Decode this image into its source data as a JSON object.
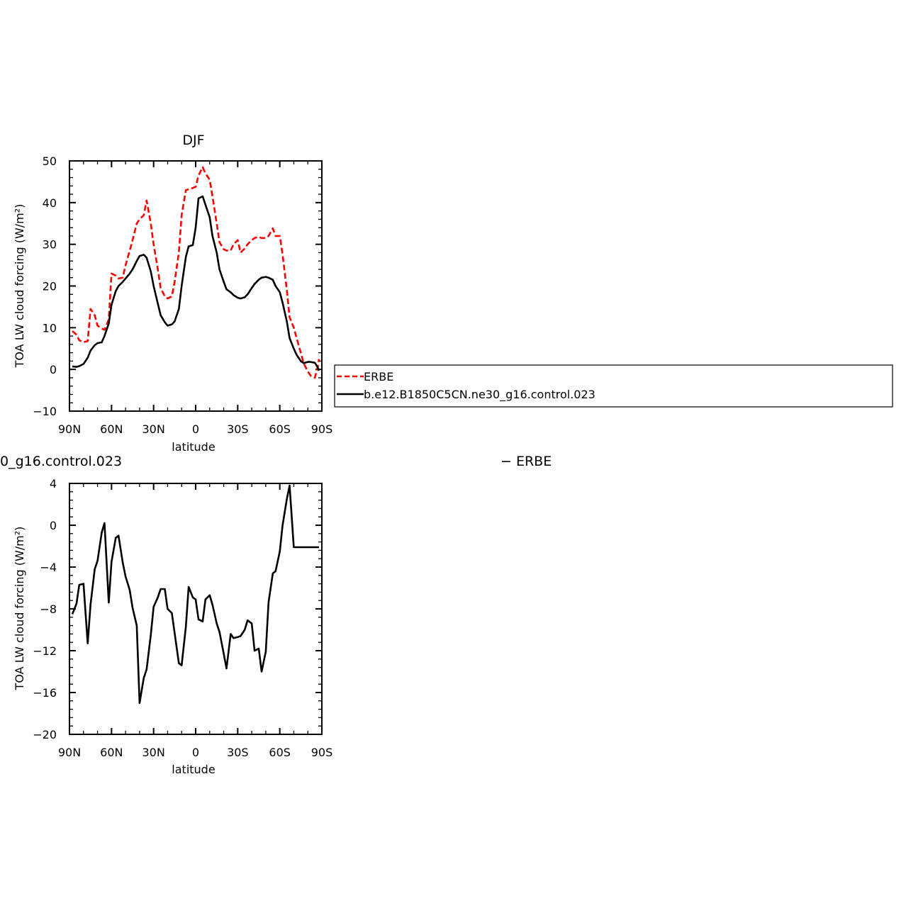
{
  "chart_data": [
    {
      "type": "line",
      "title": "DJF",
      "xlabel": "latitude",
      "ylabel": "TOA LW cloud forcing (W/m²)",
      "xlim": [
        90,
        -90
      ],
      "ylim": [
        -10,
        50
      ],
      "xticks": [
        90,
        60,
        30,
        0,
        -30,
        -60,
        -90
      ],
      "xtick_labels": [
        "90N",
        "60N",
        "30N",
        "0",
        "30S",
        "60S",
        "90S"
      ],
      "yticks": [
        -10,
        0,
        10,
        20,
        30,
        40,
        50
      ],
      "ytick_labels": [
        "−10",
        "0",
        "10",
        "20",
        "30",
        "40",
        "50"
      ],
      "legend_position": "right",
      "series": [
        {
          "name": "ERBE",
          "color": "#ff0000",
          "dash": true,
          "x": [
            88,
            85,
            83,
            80,
            77,
            75,
            72,
            70,
            67,
            65,
            62,
            60,
            57,
            55,
            52,
            50,
            47,
            45,
            42,
            40,
            37,
            35,
            32,
            30,
            27,
            25,
            22,
            20,
            17,
            15,
            12,
            10,
            7,
            5,
            2,
            0,
            -2,
            -5,
            -7,
            -10,
            -12,
            -15,
            -17,
            -20,
            -22,
            -25,
            -27,
            -30,
            -32,
            -35,
            -37,
            -40,
            -42,
            -45,
            -47,
            -50,
            -52,
            -55,
            -57,
            -60,
            -62,
            -65,
            -67,
            -70,
            -72,
            -75,
            -77,
            -80,
            -82,
            -85,
            -87,
            -88
          ],
          "y": [
            9.2,
            8.3,
            7.0,
            6.5,
            6.8,
            14.5,
            13.0,
            10.5,
            9.8,
            9.5,
            12.0,
            23.0,
            22.5,
            21.8,
            22.0,
            25.0,
            28.5,
            31.0,
            35.0,
            36.0,
            37.0,
            40.5,
            35.0,
            30.0,
            24.0,
            19.5,
            17.5,
            17.0,
            17.5,
            21.0,
            28.0,
            37.0,
            43.0,
            43.2,
            43.5,
            43.8,
            46.5,
            48.5,
            47.0,
            45.5,
            41.5,
            35.0,
            30.5,
            28.8,
            28.5,
            28.5,
            30.0,
            31.0,
            28.0,
            29.0,
            30.0,
            31.0,
            31.5,
            31.8,
            31.5,
            31.5,
            32.0,
            33.8,
            32.0,
            32.0,
            27.5,
            19.0,
            12.5,
            10.0,
            7.5,
            4.0,
            1.5,
            -0.5,
            -1.5,
            -2.0,
            0.5,
            2.5
          ]
        },
        {
          "name": "b.e12.B1850C5CN.ne30_g16.control.023",
          "color": "#000000",
          "dash": false,
          "x": [
            88,
            85,
            83,
            80,
            77,
            75,
            72,
            70,
            67,
            65,
            62,
            60,
            57,
            55,
            52,
            50,
            47,
            45,
            42,
            40,
            37,
            35,
            32,
            30,
            27,
            25,
            22,
            20,
            17,
            15,
            12,
            10,
            7,
            5,
            2,
            0,
            -2,
            -5,
            -7,
            -10,
            -12,
            -15,
            -17,
            -20,
            -22,
            -25,
            -27,
            -30,
            -32,
            -35,
            -37,
            -40,
            -42,
            -45,
            -47,
            -50,
            -52,
            -55,
            -57,
            -60,
            -62,
            -65,
            -67,
            -70,
            -72,
            -75,
            -77,
            -80,
            -82,
            -85,
            -87,
            -88
          ],
          "y": [
            0.7,
            0.6,
            0.8,
            1.3,
            2.8,
            4.5,
            5.8,
            6.3,
            6.5,
            8.0,
            11.0,
            15.5,
            18.8,
            20.0,
            21.0,
            21.8,
            23.0,
            24.0,
            26.0,
            27.2,
            27.5,
            26.8,
            23.5,
            20.0,
            15.8,
            13.0,
            11.3,
            10.5,
            10.8,
            11.5,
            14.5,
            20.0,
            27.0,
            29.5,
            29.8,
            34.0,
            41.0,
            41.5,
            39.5,
            36.5,
            32.0,
            28.0,
            24.0,
            21.0,
            19.2,
            18.5,
            17.8,
            17.2,
            17.0,
            17.3,
            18.0,
            19.5,
            20.5,
            21.5,
            22.0,
            22.2,
            22.0,
            21.5,
            20.0,
            18.5,
            16.0,
            11.5,
            7.5,
            5.0,
            3.5,
            2.0,
            1.5,
            1.8,
            1.8,
            1.6,
            0.5,
            -0.3
          ]
        }
      ]
    },
    {
      "type": "line",
      "title": "0_g16.control.023",
      "title_right": "− ERBE",
      "xlabel": "latitude",
      "ylabel": "TOA LW cloud forcing (W/m²)",
      "xlim": [
        90,
        -90
      ],
      "ylim": [
        -20,
        4
      ],
      "xticks": [
        90,
        60,
        30,
        0,
        -30,
        -60,
        -90
      ],
      "xtick_labels": [
        "90N",
        "60N",
        "30N",
        "0",
        "30S",
        "60S",
        "90S"
      ],
      "yticks": [
        -20,
        -16,
        -12,
        -8,
        -4,
        0,
        4
      ],
      "ytick_labels": [
        "−20",
        "−16",
        "−12",
        "−8",
        "−4",
        "0",
        "4"
      ],
      "series": [
        {
          "color": "#000000",
          "dash": false,
          "x": [
            88,
            85,
            83,
            80,
            77,
            75,
            72,
            70,
            67,
            65,
            62,
            60,
            57,
            55,
            52,
            50,
            47,
            45,
            42,
            40,
            37,
            35,
            32,
            30,
            27,
            25,
            22,
            20,
            17,
            15,
            12,
            10,
            7,
            5,
            2,
            0,
            -2,
            -5,
            -7,
            -10,
            -12,
            -15,
            -17,
            -20,
            -22,
            -25,
            -27,
            -30,
            -32,
            -35,
            -37,
            -40,
            -42,
            -45,
            -47,
            -50,
            -52,
            -55,
            -57,
            -60,
            -62,
            -65,
            -67,
            -70,
            -72,
            -75,
            -77,
            -80,
            -82,
            -85,
            -87,
            -88
          ],
          "y": [
            -8.5,
            -7.5,
            -5.7,
            -5.6,
            -11.3,
            -7.6,
            -4.2,
            -3.4,
            -0.7,
            0.2,
            -7.4,
            -3.5,
            -1.2,
            -1.0,
            -3.6,
            -4.9,
            -6.2,
            -7.9,
            -9.6,
            -17.0,
            -14.6,
            -13.8,
            -10.5,
            -7.8,
            -6.9,
            -6.1,
            -6.1,
            -8.0,
            -8.4,
            -10.3,
            -13.2,
            -13.4,
            -9.7,
            -5.9,
            -6.9,
            -7.1,
            -9.0,
            -9.2,
            -7.1,
            -6.7,
            -7.6,
            -9.4,
            -10.2,
            -12.3,
            -13.7,
            -10.4,
            -10.8,
            -10.7,
            -10.6,
            -10.0,
            -9.1,
            -9.4,
            -12.0,
            -11.8,
            -14.0,
            -12.1,
            -7.4,
            -4.6,
            -4.4,
            -2.5,
            0.0,
            2.5,
            3.8,
            -2.1,
            -2.1,
            -2.1,
            -2.1,
            -2.1,
            -2.1,
            -2.1,
            -2.1,
            -2.1
          ]
        }
      ]
    }
  ]
}
